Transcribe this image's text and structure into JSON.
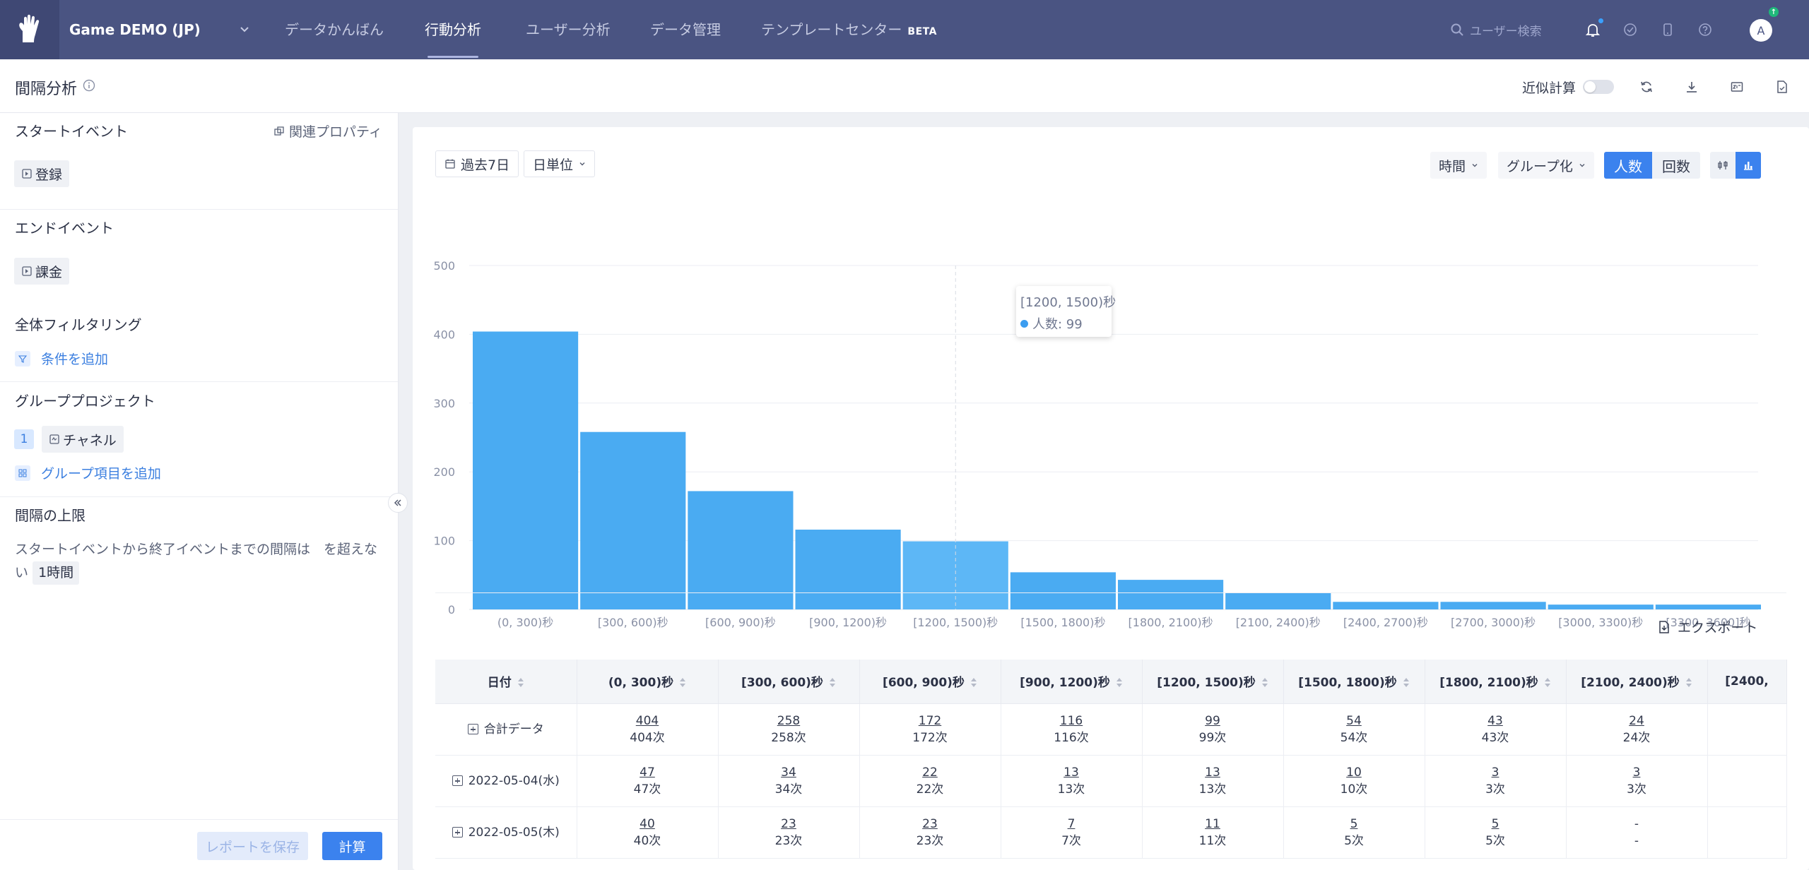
{
  "topbar": {
    "project": "Game DEMO (JP)",
    "nav": [
      {
        "label": "データかんばん",
        "active": false
      },
      {
        "label": "行動分析",
        "active": true
      },
      {
        "label": "ユーザー分析",
        "active": false
      },
      {
        "label": "データ管理",
        "active": false
      },
      {
        "label": "テンプレートセンター",
        "badge": "BETA",
        "active": false
      }
    ],
    "search_placeholder": "ユーザー検索",
    "avatar": "A",
    "avatar_badge": "↑"
  },
  "page": {
    "title": "間隔分析",
    "approx_label": "近似計算"
  },
  "left": {
    "start_event_title": "スタートイベント",
    "related_property": "関連プロパティ",
    "start_event": "登録",
    "end_event_title": "エンドイベント",
    "end_event": "課金",
    "filter_title": "全体フィルタリング",
    "add_condition": "条件を追加",
    "group_title": "グループプロジェクト",
    "group_index": "1",
    "group_item": "チャネル",
    "add_group": "グループ項目を追加",
    "interval_title": "間隔の上限",
    "interval_text": "スタートイベントから終了イベントまでの間隔は　を超えない",
    "interval_value": "1時間",
    "save_button": "レポートを保存",
    "calc_button": "計算"
  },
  "toolbar": {
    "date_range": "過去7日",
    "unit": "日単位",
    "time": "時間",
    "grouping": "グループ化",
    "people": "人数",
    "count": "回数"
  },
  "chart_data": {
    "type": "bar",
    "categories": [
      "(0, 300)秒",
      "[300, 600)秒",
      "[600, 900)秒",
      "[900, 1200)秒",
      "[1200, 1500)秒",
      "[1500, 1800)秒",
      "[1800, 2100)秒",
      "[2100, 2400)秒",
      "[2400, 2700)秒",
      "[2700, 3000)秒",
      "[3000, 3300)秒",
      "[3300, 3600]秒"
    ],
    "series": [
      {
        "name": "人数",
        "values": [
          404,
          258,
          172,
          116,
          99,
          54,
          43,
          24,
          11,
          11,
          7,
          7
        ]
      }
    ],
    "yticks": [
      0,
      100,
      200,
      300,
      400,
      500
    ],
    "ylim": [
      0,
      500
    ],
    "color": "#4aabf2",
    "highlight_color": "#5db7f6",
    "highlight_index": 4,
    "grid": true
  },
  "tooltip": {
    "title": "[1200, 1500)秒",
    "label": "人数: 99"
  },
  "export_label": "エクスポート",
  "table": {
    "headers": [
      "日付",
      "(0, 300)秒",
      "[300, 600)秒",
      "[600, 900)秒",
      "[900, 1200)秒",
      "[1200, 1500)秒",
      "[1500, 1800)秒",
      "[1800, 2100)秒",
      "[2100, 2400)秒",
      "[2400,"
    ],
    "rows": [
      {
        "label": "合計データ",
        "cells": [
          [
            "404",
            "404次"
          ],
          [
            "258",
            "258次"
          ],
          [
            "172",
            "172次"
          ],
          [
            "116",
            "116次"
          ],
          [
            "99",
            "99次"
          ],
          [
            "54",
            "54次"
          ],
          [
            "43",
            "43次"
          ],
          [
            "24",
            "24次"
          ],
          [
            "",
            ""
          ]
        ]
      },
      {
        "label": "2022-05-04(水)",
        "cells": [
          [
            "47",
            "47次"
          ],
          [
            "34",
            "34次"
          ],
          [
            "22",
            "22次"
          ],
          [
            "13",
            "13次"
          ],
          [
            "13",
            "13次"
          ],
          [
            "10",
            "10次"
          ],
          [
            "3",
            "3次"
          ],
          [
            "3",
            "3次"
          ],
          [
            "",
            ""
          ]
        ]
      },
      {
        "label": "2022-05-05(木)",
        "cells": [
          [
            "40",
            "40次"
          ],
          [
            "23",
            "23次"
          ],
          [
            "23",
            "23次"
          ],
          [
            "7",
            "7次"
          ],
          [
            "11",
            "11次"
          ],
          [
            "5",
            "5次"
          ],
          [
            "5",
            "5次"
          ],
          [
            "-",
            "-"
          ],
          [
            "",
            ""
          ]
        ]
      }
    ]
  }
}
